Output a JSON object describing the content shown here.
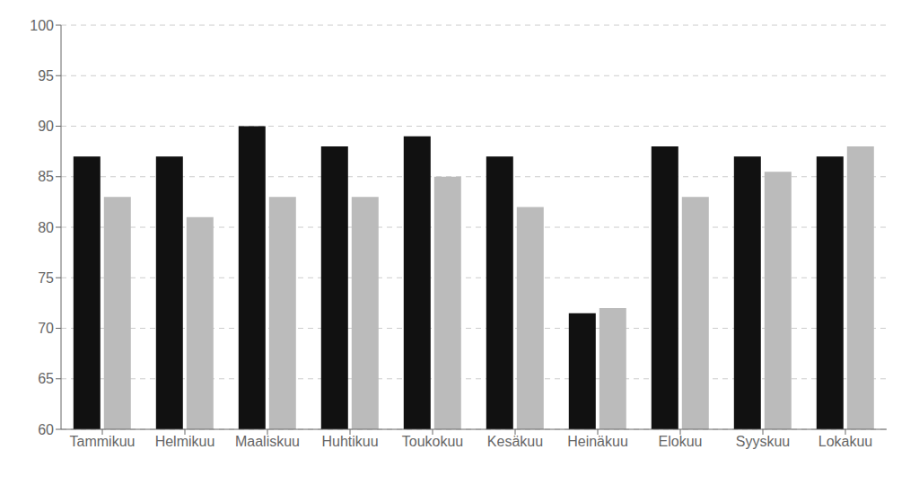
{
  "chart_data": {
    "type": "bar",
    "categories": [
      "Tammikuu",
      "Helmikuu",
      "Maaliskuu",
      "Huhtikuu",
      "Toukokuu",
      "Kesäkuu",
      "Heinäkuu",
      "Elokuu",
      "Syyskuu",
      "Lokakuu"
    ],
    "series": [
      {
        "color": "#111111",
        "values": [
          87.0,
          87.0,
          90.0,
          88.0,
          89.0,
          87.0,
          71.5,
          88.0,
          87.0,
          87.0
        ]
      },
      {
        "color": "#bbbbbb",
        "values": [
          83.0,
          81.0,
          83.0,
          83.0,
          85.0,
          82.0,
          72.0,
          83.0,
          85.5,
          88.0
        ]
      }
    ],
    "ylim": [
      60,
      100
    ],
    "yticks": [
      60,
      65,
      70,
      75,
      80,
      85,
      90,
      95,
      100
    ],
    "grid": true
  }
}
